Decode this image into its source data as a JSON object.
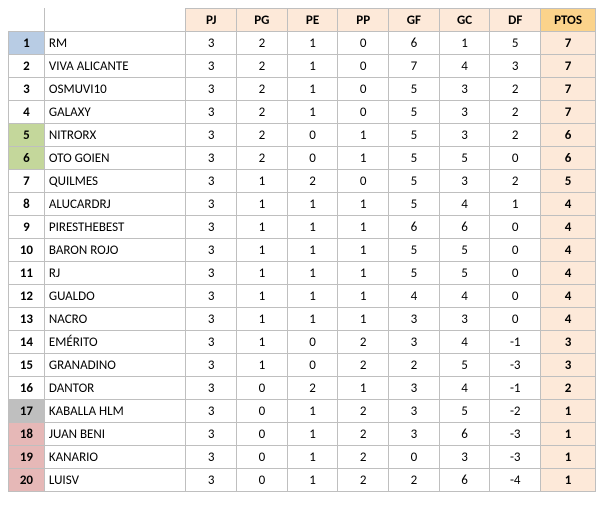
{
  "table": {
    "columns": [
      "PJ",
      "PG",
      "PE",
      "PP",
      "GF",
      "GC",
      "DF",
      "PTOS"
    ],
    "header_stat_bg": "#fde9d9",
    "header_ptos_bg": "#fbd38b",
    "ptos_cell_bg": "#fde9d9",
    "border_color": "#bfbfbf",
    "font_family": "Calibri",
    "font_size_pt": 10,
    "rank_colors": {
      "blue": "#b8cce4",
      "green": "#c4d79b",
      "grey": "#bfbfbf",
      "pink": "#e6b8b7",
      "none": "#ffffff"
    },
    "rows": [
      {
        "rank": 1,
        "rank_color": "blue",
        "team": "RM",
        "PJ": 3,
        "PG": 2,
        "PE": 1,
        "PP": 0,
        "GF": 6,
        "GC": 1,
        "DF": 5,
        "PTOS": 7
      },
      {
        "rank": 2,
        "rank_color": "none",
        "team": "VIVA ALICANTE",
        "PJ": 3,
        "PG": 2,
        "PE": 1,
        "PP": 0,
        "GF": 7,
        "GC": 4,
        "DF": 3,
        "PTOS": 7
      },
      {
        "rank": 3,
        "rank_color": "none",
        "team": "OSMUVI10",
        "PJ": 3,
        "PG": 2,
        "PE": 1,
        "PP": 0,
        "GF": 5,
        "GC": 3,
        "DF": 2,
        "PTOS": 7
      },
      {
        "rank": 4,
        "rank_color": "none",
        "team": "GALAXY",
        "PJ": 3,
        "PG": 2,
        "PE": 1,
        "PP": 0,
        "GF": 5,
        "GC": 3,
        "DF": 2,
        "PTOS": 7
      },
      {
        "rank": 5,
        "rank_color": "green",
        "team": "NITRORX",
        "PJ": 3,
        "PG": 2,
        "PE": 0,
        "PP": 1,
        "GF": 5,
        "GC": 3,
        "DF": 2,
        "PTOS": 6
      },
      {
        "rank": 6,
        "rank_color": "green",
        "team": "OTO GOIEN",
        "PJ": 3,
        "PG": 2,
        "PE": 0,
        "PP": 1,
        "GF": 5,
        "GC": 5,
        "DF": 0,
        "PTOS": 6
      },
      {
        "rank": 7,
        "rank_color": "none",
        "team": "QUILMES",
        "PJ": 3,
        "PG": 1,
        "PE": 2,
        "PP": 0,
        "GF": 5,
        "GC": 3,
        "DF": 2,
        "PTOS": 5
      },
      {
        "rank": 8,
        "rank_color": "none",
        "team": "ALUCARDRJ",
        "PJ": 3,
        "PG": 1,
        "PE": 1,
        "PP": 1,
        "GF": 5,
        "GC": 4,
        "DF": 1,
        "PTOS": 4
      },
      {
        "rank": 9,
        "rank_color": "none",
        "team": "PIRESTHEBEST",
        "PJ": 3,
        "PG": 1,
        "PE": 1,
        "PP": 1,
        "GF": 6,
        "GC": 6,
        "DF": 0,
        "PTOS": 4
      },
      {
        "rank": 10,
        "rank_color": "none",
        "team": "BARON ROJO",
        "PJ": 3,
        "PG": 1,
        "PE": 1,
        "PP": 1,
        "GF": 5,
        "GC": 5,
        "DF": 0,
        "PTOS": 4
      },
      {
        "rank": 11,
        "rank_color": "none",
        "team": "RJ",
        "PJ": 3,
        "PG": 1,
        "PE": 1,
        "PP": 1,
        "GF": 5,
        "GC": 5,
        "DF": 0,
        "PTOS": 4
      },
      {
        "rank": 12,
        "rank_color": "none",
        "team": "GUALDO",
        "PJ": 3,
        "PG": 1,
        "PE": 1,
        "PP": 1,
        "GF": 4,
        "GC": 4,
        "DF": 0,
        "PTOS": 4
      },
      {
        "rank": 13,
        "rank_color": "none",
        "team": "NACRO",
        "PJ": 3,
        "PG": 1,
        "PE": 1,
        "PP": 1,
        "GF": 3,
        "GC": 3,
        "DF": 0,
        "PTOS": 4
      },
      {
        "rank": 14,
        "rank_color": "none",
        "team": "EMÉRITO",
        "PJ": 3,
        "PG": 1,
        "PE": 0,
        "PP": 2,
        "GF": 3,
        "GC": 4,
        "DF": -1,
        "PTOS": 3
      },
      {
        "rank": 15,
        "rank_color": "none",
        "team": "GRANADINO",
        "PJ": 3,
        "PG": 1,
        "PE": 0,
        "PP": 2,
        "GF": 2,
        "GC": 5,
        "DF": -3,
        "PTOS": 3
      },
      {
        "rank": 16,
        "rank_color": "none",
        "team": "DANTOR",
        "PJ": 3,
        "PG": 0,
        "PE": 2,
        "PP": 1,
        "GF": 3,
        "GC": 4,
        "DF": -1,
        "PTOS": 2
      },
      {
        "rank": 17,
        "rank_color": "grey",
        "team": "KABALLA HLM",
        "PJ": 3,
        "PG": 0,
        "PE": 1,
        "PP": 2,
        "GF": 3,
        "GC": 5,
        "DF": -2,
        "PTOS": 1
      },
      {
        "rank": 18,
        "rank_color": "pink",
        "team": "JUAN BENI",
        "PJ": 3,
        "PG": 0,
        "PE": 1,
        "PP": 2,
        "GF": 3,
        "GC": 6,
        "DF": -3,
        "PTOS": 1
      },
      {
        "rank": 19,
        "rank_color": "pink",
        "team": "KANARIO",
        "PJ": 3,
        "PG": 0,
        "PE": 1,
        "PP": 2,
        "GF": 0,
        "GC": 3,
        "DF": -3,
        "PTOS": 1
      },
      {
        "rank": 20,
        "rank_color": "pink",
        "team": "LUISV",
        "PJ": 3,
        "PG": 0,
        "PE": 1,
        "PP": 2,
        "GF": 2,
        "GC": 6,
        "DF": -4,
        "PTOS": 1
      }
    ]
  }
}
